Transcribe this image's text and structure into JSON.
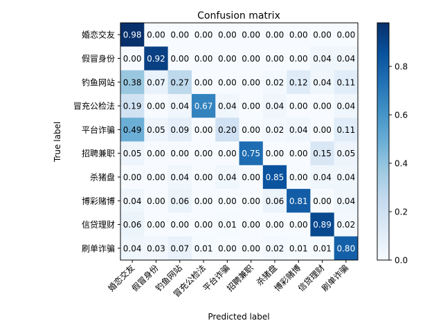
{
  "chart_data": {
    "type": "heatmap",
    "title": "Confusion matrix",
    "xlabel": "Predicted label",
    "ylabel": "True label",
    "categories": [
      "婚恋交友",
      "假冒身份",
      "钓鱼网站",
      "冒充公检法",
      "平台诈骗",
      "招聘兼职",
      "杀猪盘",
      "博彩赌博",
      "信贷理财",
      "刷单诈骗"
    ],
    "values": [
      [
        0.98,
        0.0,
        0.0,
        0.0,
        0.0,
        0.0,
        0.0,
        0.0,
        0.0,
        0.0
      ],
      [
        0.0,
        0.92,
        0.0,
        0.0,
        0.0,
        0.0,
        0.0,
        0.0,
        0.04,
        0.04
      ],
      [
        0.38,
        0.07,
        0.27,
        0.0,
        0.0,
        0.0,
        0.02,
        0.12,
        0.04,
        0.11
      ],
      [
        0.19,
        0.0,
        0.04,
        0.67,
        0.04,
        0.0,
        0.04,
        0.0,
        0.0,
        0.04
      ],
      [
        0.49,
        0.05,
        0.09,
        0.0,
        0.2,
        0.0,
        0.02,
        0.04,
        0.0,
        0.11
      ],
      [
        0.05,
        0.0,
        0.0,
        0.0,
        0.0,
        0.75,
        0.0,
        0.0,
        0.15,
        0.05
      ],
      [
        0.0,
        0.0,
        0.04,
        0.0,
        0.04,
        0.0,
        0.85,
        0.0,
        0.04,
        0.04
      ],
      [
        0.04,
        0.0,
        0.06,
        0.0,
        0.0,
        0.0,
        0.06,
        0.81,
        0.0,
        0.04
      ],
      [
        0.06,
        0.0,
        0.0,
        0.0,
        0.01,
        0.0,
        0.0,
        0.0,
        0.89,
        0.02
      ],
      [
        0.04,
        0.03,
        0.07,
        0.01,
        0.0,
        0.0,
        0.02,
        0.01,
        0.01,
        0.8
      ]
    ],
    "colorbar_ticks": [
      "0.0",
      "0.2",
      "0.4",
      "0.6",
      "0.8"
    ],
    "colorbar_range": [
      0,
      0.98
    ],
    "colormap": "Blues",
    "colors": {
      "low": "#f7fbff",
      "high": "#08306b"
    }
  }
}
